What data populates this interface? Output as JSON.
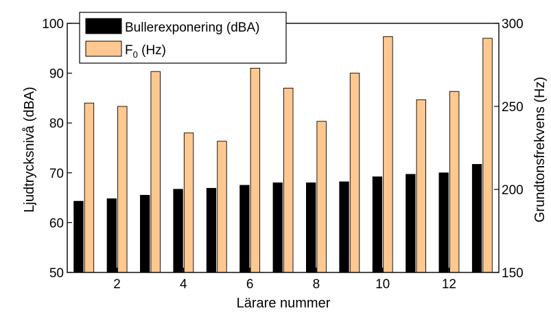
{
  "chart_data": {
    "type": "bar",
    "x": [
      1,
      2,
      3,
      4,
      5,
      6,
      7,
      8,
      9,
      10,
      11,
      12,
      13
    ],
    "xlabel": "Lärare nummer",
    "xticks": [
      2,
      4,
      6,
      8,
      10,
      12
    ],
    "y_left": {
      "label": "Ljudtrycksnivå (dBA)",
      "lim": [
        50,
        100
      ],
      "ticks": [
        50,
        60,
        70,
        80,
        90,
        100
      ]
    },
    "y_right": {
      "label": "Grundtonsfrekvens (Hz)",
      "lim": [
        150,
        300
      ],
      "ticks": [
        150,
        200,
        250,
        300
      ]
    },
    "series": [
      {
        "name": "Bullerexponering (dBA)",
        "axis": "left",
        "color": "#000000",
        "values": [
          64.3,
          64.8,
          65.5,
          66.7,
          66.9,
          67.5,
          68.0,
          68.0,
          68.2,
          69.2,
          69.7,
          70.0,
          71.7
        ]
      },
      {
        "name": "F0 (Hz)",
        "legend_main": "F",
        "legend_sub": "0",
        "legend_rest": " (Hz)",
        "axis": "right",
        "color": "#FFC891",
        "values": [
          252,
          250,
          271,
          234,
          229,
          273,
          261,
          241,
          270,
          292,
          254,
          259,
          291
        ]
      }
    ],
    "grid": false,
    "legend_position": "top-left"
  }
}
